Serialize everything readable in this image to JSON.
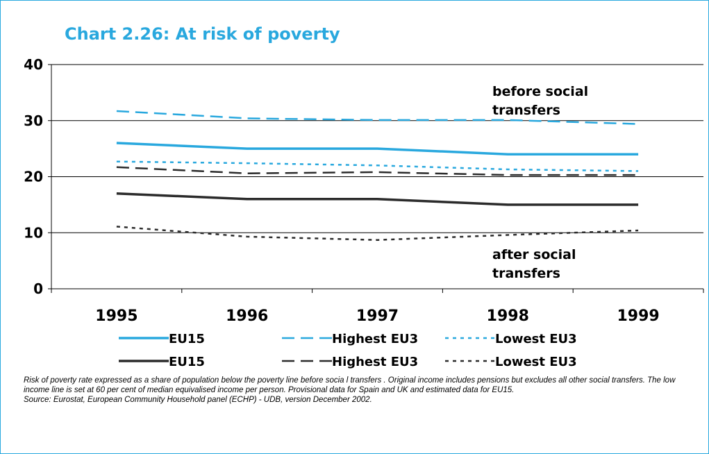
{
  "title": "Chart 2.26: At risk of poverty",
  "footnote": {
    "note": "Risk of poverty rate expressed as a share of population below the poverty line before socia l transfers . Original income includes pensions but excludes all other social transfers. The low income line is set at 60 per cent of median equivalised income per person.  Provisional data for Spain and UK and estimated data for EU15.",
    "source": "Source: Eurostat, European Community Household panel (ECHP) - UDB, version December 2002."
  },
  "colors": {
    "blue": "#29a8de",
    "dark": "#2b2b2b",
    "frame": "#29a8de"
  },
  "chart_data": {
    "type": "line",
    "title": "Chart 2.26: At risk of poverty",
    "x": [
      "1995",
      "1996",
      "1997",
      "1998",
      "1999"
    ],
    "ylim": [
      0,
      40
    ],
    "yticks": [
      0,
      10,
      20,
      30,
      40
    ],
    "grid": true,
    "legend_placement": "bottom",
    "annotations": [
      {
        "lines": [
          "before social",
          "transfers"
        ],
        "near": "before social transfers series"
      },
      {
        "lines": [
          "after social",
          "transfers"
        ],
        "near": "after social transfers series"
      }
    ],
    "series": [
      {
        "name": "EU15",
        "group": "before",
        "style": "solid",
        "color": "#29a8de",
        "values": [
          26,
          25,
          25,
          24,
          24
        ]
      },
      {
        "name": "Highest EU3",
        "group": "before",
        "style": "dashed",
        "color": "#29a8de",
        "values": [
          31.7,
          30.4,
          30.1,
          30.1,
          29.4
        ]
      },
      {
        "name": "Lowest EU3",
        "group": "before",
        "style": "dotted",
        "color": "#29a8de",
        "values": [
          22.7,
          22.4,
          22,
          21.3,
          21
        ]
      },
      {
        "name": "EU15",
        "group": "after",
        "style": "solid",
        "color": "#2b2b2b",
        "values": [
          17,
          16,
          16,
          15,
          15
        ]
      },
      {
        "name": "Highest EU3",
        "group": "after",
        "style": "dashed",
        "color": "#2b2b2b",
        "values": [
          21.7,
          20.6,
          20.8,
          20.3,
          20.3
        ]
      },
      {
        "name": "Lowest EU3",
        "group": "after",
        "style": "dotted",
        "color": "#2b2b2b",
        "values": [
          11.1,
          9.3,
          8.7,
          9.6,
          10.4
        ]
      }
    ]
  }
}
